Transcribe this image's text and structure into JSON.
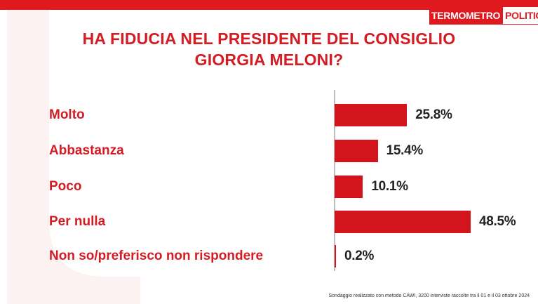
{
  "brand": {
    "part1": "TERMOMETRO",
    "part2": "POLITICO"
  },
  "colors": {
    "accent": "#d31c23",
    "bar": "#d3141c",
    "topbar": "#e0191f"
  },
  "chart_data": {
    "type": "bar",
    "orientation": "horizontal",
    "title_lines": [
      "HA FIDUCIA NEL PRESIDENTE DEL CONSIGLIO",
      "GIORGIA MELONI?"
    ],
    "categories": [
      "Molto",
      "Abbastanza",
      "Poco",
      "Per nulla",
      "Non so/preferisco non rispondere"
    ],
    "values": [
      25.8,
      15.4,
      10.1,
      48.5,
      0.2
    ],
    "value_labels": [
      "25.8%",
      "15.4%",
      "10.1%",
      "48.5%",
      "0.2%"
    ],
    "xlim": [
      0,
      48.5
    ],
    "grid": false,
    "legend": "none"
  },
  "footnote": "Sondaggio realizzato con metodo CAWI, 3200 interviste raccolte tra il 01 e il 03 ottobre 2024"
}
